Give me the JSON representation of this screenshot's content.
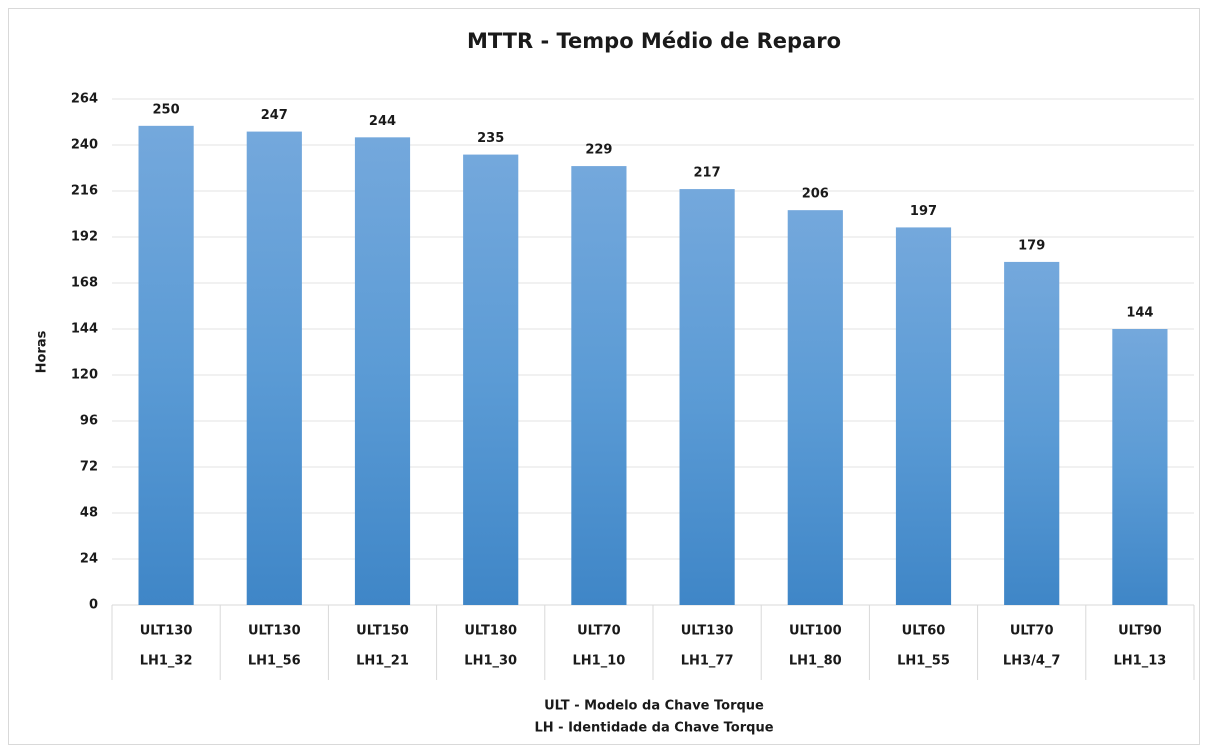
{
  "chart_data": {
    "type": "bar",
    "title": "MTTR - Tempo Médio de Reparo",
    "ylabel": "Horas",
    "xlabel": [
      "ULT - Modelo da Chave Torque",
      "LH - Identidade da Chave Torque"
    ],
    "categories": [
      [
        "ULT130",
        "LH1_32"
      ],
      [
        "ULT130",
        "LH1_56"
      ],
      [
        "ULT150",
        "LH1_21"
      ],
      [
        "ULT180",
        "LH1_30"
      ],
      [
        "ULT70",
        "LH1_10"
      ],
      [
        "ULT130",
        "LH1_77"
      ],
      [
        "ULT100",
        "LH1_80"
      ],
      [
        "ULT60",
        "LH1_55"
      ],
      [
        "ULT70",
        "LH3/4_7"
      ],
      [
        "ULT90",
        "LH1_13"
      ]
    ],
    "values": [
      250,
      247,
      244,
      235,
      229,
      217,
      206,
      197,
      179,
      144
    ],
    "color": "#5b9bd5",
    "ylim": [
      0,
      264
    ],
    "yticks": [
      0,
      24,
      48,
      72,
      96,
      120,
      144,
      168,
      192,
      216,
      240,
      264
    ],
    "grid": true
  }
}
